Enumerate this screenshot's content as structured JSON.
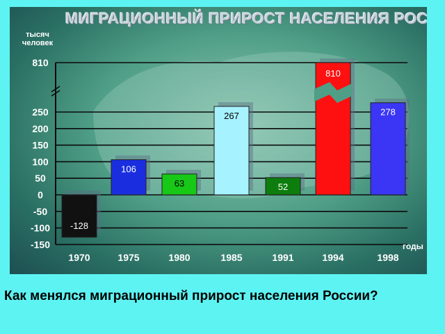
{
  "chart_data": {
    "type": "bar",
    "title": "МИГРАЦИОННЫЙ ПРИРОСТ НАСЕЛЕНИЯ РОССИИ",
    "ylabel": "тысяч человек",
    "xlabel": "годы",
    "categories": [
      "1970",
      "1975",
      "1980",
      "1985",
      "1991",
      "1994",
      "1998"
    ],
    "values": [
      -128,
      106,
      63,
      267,
      52,
      810,
      278
    ],
    "value_labels": [
      "-128",
      "106",
      "63",
      "267",
      "52",
      "810",
      "278"
    ],
    "bar_colors": [
      "#111111",
      "#1a2ee0",
      "#17c817",
      "#a6f2ff",
      "#0d7d0d",
      "#ff1010",
      "#3b36f5"
    ],
    "label_colors": [
      "#ffffff",
      "#ffffff",
      "#000000",
      "#000000",
      "#ffffff",
      "#ffffff",
      "#ffffff"
    ],
    "y_ticks": [
      "810",
      "250",
      "200",
      "150",
      "100",
      "50",
      "0",
      "-50",
      "-100",
      "-150"
    ],
    "axis_break": true,
    "grid": true
  },
  "caption": "Как менялся миграционный прирост населения России?"
}
